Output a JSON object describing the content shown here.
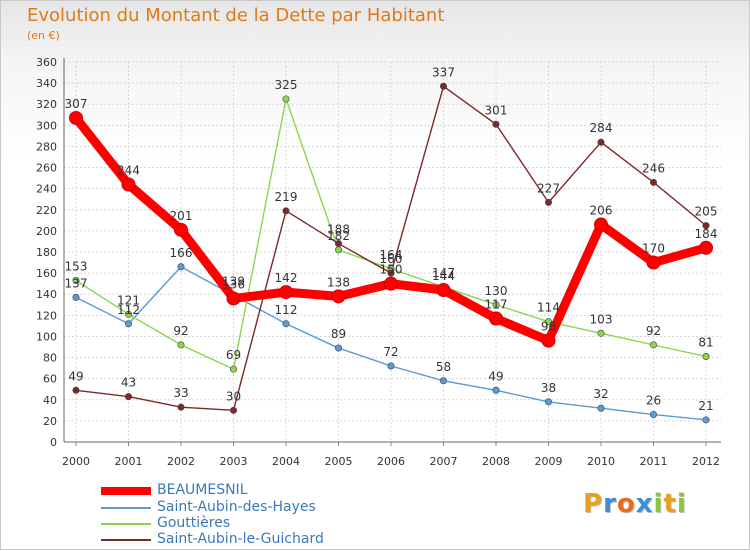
{
  "title": "Evolution du Montant de la Dette par Habitant",
  "unit": "(en €)",
  "logo": {
    "text": "Proxiti"
  },
  "chart_data": {
    "type": "line",
    "x": [
      "2000",
      "2001",
      "2002",
      "2003",
      "2004",
      "2005",
      "2006",
      "2007",
      "2008",
      "2009",
      "2010",
      "2011",
      "2012"
    ],
    "ylim": [
      0,
      360
    ],
    "yticks": [
      0,
      20,
      40,
      60,
      80,
      100,
      120,
      140,
      160,
      180,
      200,
      220,
      240,
      260,
      280,
      300,
      320,
      340,
      360
    ],
    "grid": true,
    "legend_position": "bottom-left",
    "series": [
      {
        "name": "BEAUMESNIL",
        "color": "#ff0000",
        "values": [
          307,
          244,
          201,
          136,
          142,
          138,
          150,
          144,
          117,
          96,
          206,
          170,
          184
        ],
        "labels": [
          "307",
          "244",
          "201",
          "136",
          "142",
          "138",
          "150",
          "144",
          "117",
          "96",
          "206",
          "170",
          "184"
        ]
      },
      {
        "name": "Saint-Aubin-des-Hayes",
        "color": "#5a9bd5",
        "values": [
          137,
          112,
          166,
          139,
          112,
          89,
          72,
          58,
          49,
          38,
          32,
          26,
          21
        ],
        "labels": [
          "137",
          "112",
          "166",
          "139",
          "112",
          "89",
          "72",
          "58",
          "49",
          "38",
          "32",
          "26",
          "21"
        ]
      },
      {
        "name": "Gouttières",
        "color": "#8fd44f",
        "values": [
          153,
          121,
          92,
          69,
          325,
          182,
          164,
          147,
          130,
          114,
          103,
          92,
          81
        ],
        "labels": [
          "153",
          "121",
          "92",
          "69",
          "325",
          "182",
          "164",
          "147",
          "130",
          "114",
          "103",
          "92",
          "81"
        ]
      },
      {
        "name": "Saint-Aubin-le-Guichard",
        "color": "#7a2a2a",
        "values": [
          49,
          43,
          33,
          30,
          219,
          188,
          160,
          337,
          301,
          227,
          284,
          246,
          205
        ],
        "labels": [
          "49",
          "43",
          "33",
          "30",
          "219",
          "188",
          "160",
          "337",
          "301",
          "227",
          "284",
          "246",
          "205"
        ]
      }
    ]
  }
}
